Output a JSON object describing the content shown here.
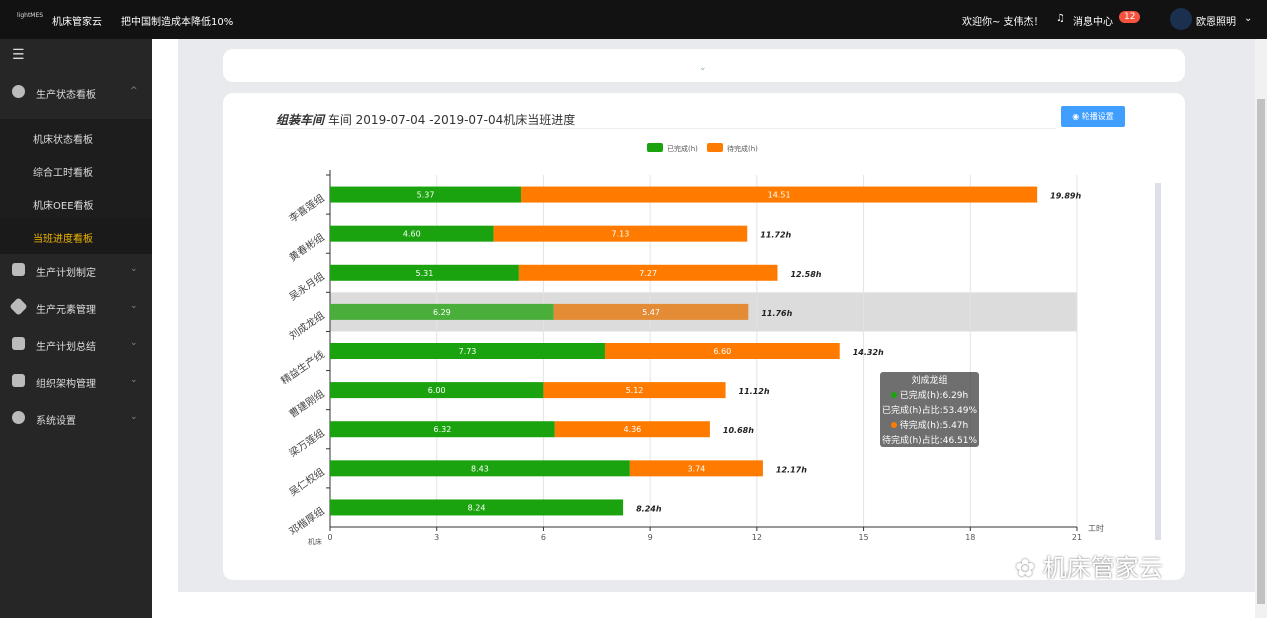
{
  "header": {
    "logo": "lightMES",
    "brand": "机床管家云",
    "slogan": "把中国制造成本降低10%",
    "welcome": "欢迎你~ 支伟杰！",
    "messages": "消息中心",
    "message_count": "12",
    "user": "欧恩照明"
  },
  "sidebar": {
    "groups": [
      {
        "label": "生产状态看板",
        "icon": "dashboard-icon",
        "expanded": true,
        "items": [
          {
            "label": "机床状态看板"
          },
          {
            "label": "综合工时看板"
          },
          {
            "label": "机床OEE看板"
          },
          {
            "label": "当班进度看板",
            "active": true
          }
        ]
      },
      {
        "label": "生产计划制定",
        "icon": "document-icon"
      },
      {
        "label": "生产元素管理",
        "icon": "elements-icon"
      },
      {
        "label": "生产计划总结",
        "icon": "summary-icon"
      },
      {
        "label": "组织架构管理",
        "icon": "org-icon"
      },
      {
        "label": "系统设置",
        "icon": "gear-icon"
      }
    ]
  },
  "panel": {
    "title_bold": "组装车间",
    "title_rest": "车间 2019-07-04 -2019-07-04机床当班进度",
    "carousel_button": "轮播设置"
  },
  "tooltip": {
    "title": "刘成龙组",
    "line1": "已完成(h):6.29h",
    "line2": "已完成(h)占比:53.49%",
    "line3": "待完成(h):5.47h",
    "line4": "待完成(h)占比:46.51%"
  },
  "watermark": "机床管家云",
  "chart_data": {
    "type": "bar",
    "stacked": true,
    "orientation": "horizontal",
    "categories": [
      "李喜莲组",
      "黄春彬组",
      "吴永月组",
      "刘成龙组",
      "精益生产线",
      "曹建刚组",
      "梁万莲组",
      "吴仁权组",
      "邓楷厚组"
    ],
    "series": [
      {
        "name": "已完成(h)",
        "color": "#1aa30e",
        "values": [
          5.37,
          4.6,
          5.31,
          6.29,
          7.73,
          6.0,
          6.32,
          8.43,
          8.24
        ]
      },
      {
        "name": "待完成(h)",
        "color": "#ff7b00",
        "values": [
          14.51,
          7.13,
          7.27,
          5.47,
          6.6,
          5.12,
          4.36,
          3.74,
          0
        ]
      }
    ],
    "totals": [
      "19.89h",
      "11.72h",
      "12.58h",
      "11.76h",
      "14.32h",
      "11.12h",
      "10.68h",
      "12.17h",
      "8.24h"
    ],
    "xlabel": "工时",
    "ylabel": "机床",
    "xlim": [
      0,
      21
    ],
    "xticks": [
      0,
      3,
      6,
      9,
      12,
      15,
      18,
      21
    ],
    "legend": "top",
    "grid": true,
    "highlighted": "刘成龙组"
  }
}
